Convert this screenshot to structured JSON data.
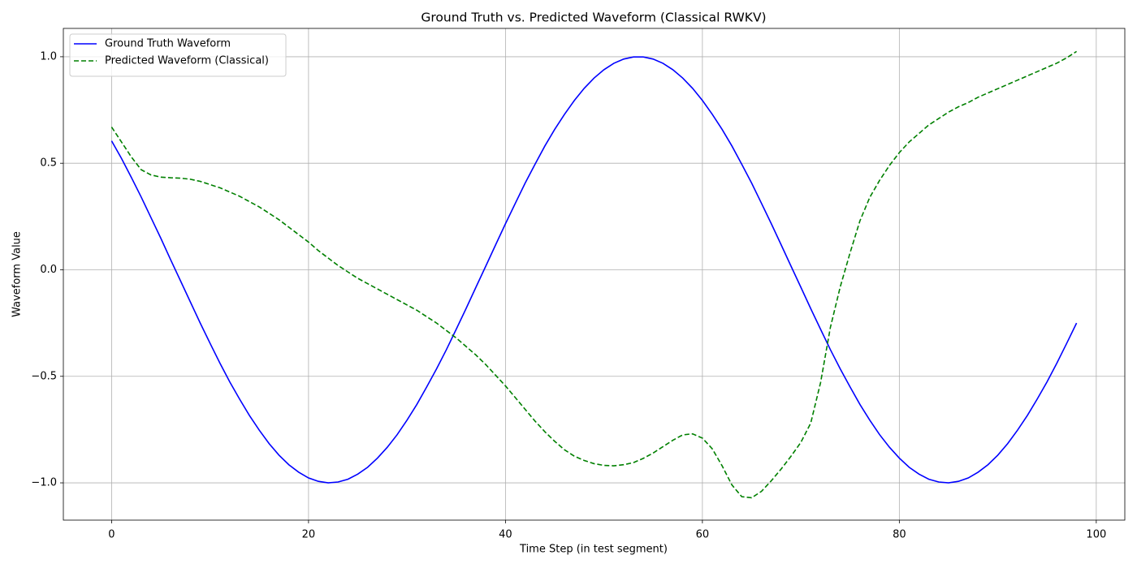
{
  "chart_data": {
    "type": "line",
    "title": "Ground Truth vs. Predicted Waveform (Classical RWKV)",
    "x_label": "Time Step (in test segment)",
    "y_label": "Waveform Value",
    "x": [
      0,
      1,
      2,
      3,
      4,
      5,
      6,
      7,
      8,
      9,
      10,
      11,
      12,
      13,
      14,
      15,
      16,
      17,
      18,
      19,
      20,
      21,
      22,
      23,
      24,
      25,
      26,
      27,
      28,
      29,
      30,
      31,
      32,
      33,
      34,
      35,
      36,
      37,
      38,
      39,
      40,
      41,
      42,
      43,
      44,
      45,
      46,
      47,
      48,
      49,
      50,
      51,
      52,
      53,
      54,
      55,
      56,
      57,
      58,
      59,
      60,
      61,
      62,
      63,
      64,
      65,
      66,
      67,
      68,
      69,
      70,
      71,
      72,
      73,
      74,
      75,
      76,
      77,
      78,
      79,
      80,
      81,
      82,
      83,
      84,
      85,
      86,
      87,
      88,
      89,
      90,
      91,
      92,
      93,
      94,
      95,
      96,
      97,
      98
    ],
    "series": [
      {
        "name": "Ground Truth Waveform",
        "color": "#0000ff",
        "style": "solid",
        "values": [
          0.605,
          0.523,
          0.434,
          0.342,
          0.245,
          0.148,
          0.047,
          -0.052,
          -0.151,
          -0.25,
          -0.345,
          -0.438,
          -0.526,
          -0.607,
          -0.684,
          -0.753,
          -0.816,
          -0.87,
          -0.915,
          -0.95,
          -0.977,
          -0.993,
          -1.0,
          -0.996,
          -0.983,
          -0.959,
          -0.927,
          -0.884,
          -0.833,
          -0.774,
          -0.706,
          -0.632,
          -0.55,
          -0.465,
          -0.375,
          -0.279,
          -0.182,
          -0.082,
          0.017,
          0.117,
          0.216,
          0.312,
          0.407,
          0.495,
          0.581,
          0.659,
          0.73,
          0.795,
          0.852,
          0.9,
          0.939,
          0.969,
          0.989,
          0.999,
          0.999,
          0.989,
          0.969,
          0.939,
          0.9,
          0.852,
          0.795,
          0.73,
          0.659,
          0.581,
          0.495,
          0.407,
          0.312,
          0.216,
          0.117,
          0.017,
          -0.082,
          -0.182,
          -0.279,
          -0.375,
          -0.465,
          -0.55,
          -0.632,
          -0.706,
          -0.774,
          -0.833,
          -0.884,
          -0.927,
          -0.959,
          -0.983,
          -0.996,
          -1.0,
          -0.993,
          -0.977,
          -0.95,
          -0.915,
          -0.87,
          -0.816,
          -0.753,
          -0.684,
          -0.607,
          -0.526,
          -0.438,
          -0.345,
          -0.25
        ]
      },
      {
        "name": "Predicted Waveform (Classical)",
        "color": "#008000",
        "style": "dashed",
        "values": [
          0.67,
          0.6,
          0.53,
          0.47,
          0.445,
          0.435,
          0.432,
          0.43,
          0.425,
          0.415,
          0.4,
          0.385,
          0.365,
          0.345,
          0.32,
          0.295,
          0.265,
          0.235,
          0.2,
          0.165,
          0.13,
          0.09,
          0.055,
          0.02,
          -0.01,
          -0.04,
          -0.065,
          -0.09,
          -0.115,
          -0.14,
          -0.165,
          -0.19,
          -0.22,
          -0.25,
          -0.285,
          -0.32,
          -0.36,
          -0.4,
          -0.445,
          -0.495,
          -0.545,
          -0.6,
          -0.655,
          -0.71,
          -0.76,
          -0.805,
          -0.845,
          -0.875,
          -0.895,
          -0.91,
          -0.918,
          -0.92,
          -0.915,
          -0.905,
          -0.885,
          -0.86,
          -0.83,
          -0.8,
          -0.775,
          -0.77,
          -0.79,
          -0.84,
          -0.92,
          -1.01,
          -1.065,
          -1.07,
          -1.04,
          -0.99,
          -0.935,
          -0.875,
          -0.81,
          -0.72,
          -0.53,
          -0.27,
          -0.08,
          0.08,
          0.23,
          0.34,
          0.42,
          0.49,
          0.55,
          0.6,
          0.64,
          0.68,
          0.71,
          0.74,
          0.765,
          0.785,
          0.81,
          0.83,
          0.85,
          0.87,
          0.89,
          0.91,
          0.93,
          0.95,
          0.97,
          0.995,
          1.025
        ]
      }
    ],
    "xlim": [
      -4.9,
      102.9
    ],
    "ylim": [
      -1.175,
      1.133
    ],
    "xticks": [
      0,
      20,
      40,
      60,
      80,
      100
    ],
    "yticks": [
      {
        "value": -1.0,
        "label": "−1.0"
      },
      {
        "value": -0.5,
        "label": "−0.5"
      },
      {
        "value": 0.0,
        "label": "0.0"
      },
      {
        "value": 0.5,
        "label": "0.5"
      },
      {
        "value": 1.0,
        "label": "1.0"
      }
    ],
    "grid": true,
    "legend": "upper left"
  }
}
